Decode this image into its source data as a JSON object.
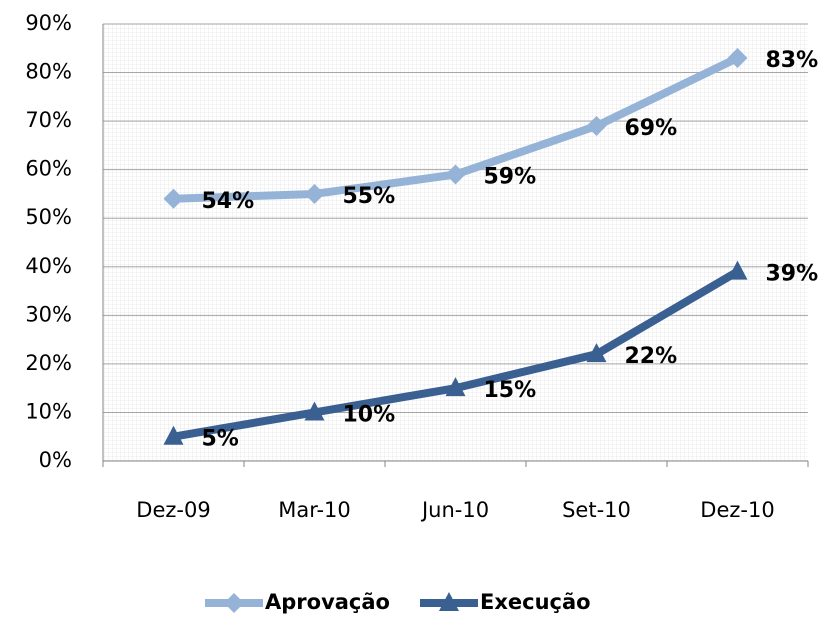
{
  "chart_data": {
    "type": "line",
    "categories": [
      "Dez-09",
      "Mar-10",
      "Jun-10",
      "Set-10",
      "Dez-10"
    ],
    "series": [
      {
        "name": "Aprovação",
        "color": "#95b3d7",
        "marker": "diamond",
        "values": [
          54,
          55,
          59,
          69,
          83
        ],
        "value_labels": [
          "54%",
          "55%",
          "59%",
          "69%",
          "83%"
        ]
      },
      {
        "name": "Execução",
        "color": "#3a5f91",
        "marker": "triangle",
        "values": [
          5,
          10,
          15,
          22,
          39
        ],
        "value_labels": [
          "5%",
          "10%",
          "15%",
          "22%",
          "39%"
        ]
      }
    ],
    "ylim": [
      0,
      90
    ],
    "yticks": [
      {
        "value": 0,
        "label": "0%"
      },
      {
        "value": 10,
        "label": "10%"
      },
      {
        "value": 20,
        "label": "20%"
      },
      {
        "value": 30,
        "label": "30%"
      },
      {
        "value": 40,
        "label": "40%"
      },
      {
        "value": 50,
        "label": "50%"
      },
      {
        "value": 60,
        "label": "60%"
      },
      {
        "value": 70,
        "label": "70%"
      },
      {
        "value": 80,
        "label": "80%"
      },
      {
        "value": 90,
        "label": "90%"
      }
    ],
    "grid": true,
    "legend": "bottom"
  }
}
